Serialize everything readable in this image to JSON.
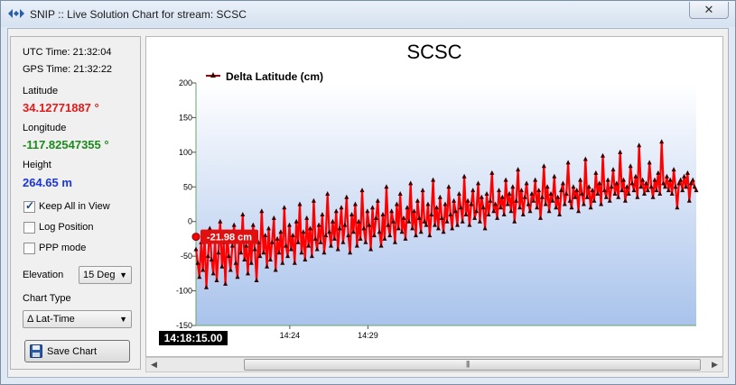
{
  "window": {
    "title": "SNIP :: Live Solution Chart for stream:  SCSC",
    "close_glyph": "✕"
  },
  "panel": {
    "utc": "UTC Time: 21:32:04",
    "gps": "GPS Time: 21:32:22",
    "lat_label": "Latitude",
    "lat_value": "34.12771887 °",
    "lon_label": "Longitude",
    "lon_value": "-117.82547355 °",
    "height_label": "Height",
    "height_value": "264.65 m",
    "keep_all": {
      "label": "Keep All in View",
      "checked": true
    },
    "log_pos": {
      "label": "Log Position",
      "checked": false
    },
    "ppp": {
      "label": "PPP mode",
      "checked": false
    },
    "elevation_label": "Elevation",
    "elevation_value": "15 Deg",
    "chart_type_label": "Chart Type",
    "chart_type_value": "Δ Lat-Time",
    "save_label": "Save Chart"
  },
  "colors": {
    "series": "#ff0000",
    "marker": "#3a0000",
    "accent_lat": "#e11b1b",
    "accent_lon": "#1c8a1c",
    "accent_h": "#1a36d6"
  },
  "chart_data": {
    "type": "line",
    "title": "SCSC",
    "legend": [
      "Delta Latitude (cm)"
    ],
    "legend_position": "top-left",
    "ylim": [
      -150,
      200
    ],
    "yticks": [
      200,
      150,
      100,
      50,
      0,
      -50,
      -100,
      -150
    ],
    "xtick_labels": [
      "14:24",
      "14:29"
    ],
    "time_range_min": [
      14.18,
      14.5
    ],
    "cursor_time": "14:18:15.00",
    "cursor_value_label": "-21.98 cm",
    "cursor_value": -21.98,
    "grid": false,
    "series": [
      {
        "name": "Delta Latitude (cm)",
        "values": [
          -40,
          -60,
          -80,
          -30,
          -70,
          -20,
          -95,
          -50,
          -10,
          -55,
          -75,
          -25,
          -85,
          -45,
          0,
          -65,
          -30,
          -90,
          -15,
          -50,
          -70,
          -35,
          -5,
          -60,
          -80,
          -25,
          -45,
          10,
          -55,
          -35,
          -75,
          -20,
          -60,
          -5,
          -40,
          -85,
          -30,
          -50,
          15,
          -45,
          -20,
          -65,
          -10,
          -55,
          -30,
          5,
          -70,
          -25,
          -45,
          -15,
          -60,
          20,
          -35,
          -50,
          -5,
          -40,
          -20,
          -60,
          0,
          -30,
          25,
          -45,
          -15,
          -55,
          5,
          -35,
          -10,
          -50,
          30,
          -25,
          -40,
          -5,
          -30,
          10,
          -45,
          -20,
          40,
          -15,
          -35,
          0,
          -25,
          15,
          -40,
          -10,
          20,
          -30,
          -5,
          35,
          -20,
          -45,
          10,
          -15,
          25,
          -35,
          0,
          -25,
          45,
          -10,
          -30,
          15,
          -5,
          -40,
          20,
          -20,
          5,
          30,
          -15,
          -35,
          10,
          -25,
          50,
          -5,
          -20,
          15,
          0,
          -30,
          25,
          -10,
          40,
          -15,
          5,
          -25,
          20,
          0,
          55,
          -10,
          15,
          -20,
          30,
          5,
          -15,
          45,
          0,
          -5,
          25,
          -20,
          10,
          60,
          -5,
          20,
          -10,
          35,
          5,
          -15,
          25,
          0,
          50,
          10,
          -10,
          30,
          15,
          -5,
          40,
          20,
          0,
          65,
          10,
          30,
          -5,
          25,
          45,
          5,
          15,
          55,
          0,
          35,
          20,
          -10,
          40,
          10,
          30,
          70,
          15,
          25,
          5,
          45,
          20,
          35,
          10,
          60,
          25,
          40,
          15,
          50,
          0,
          30,
          75,
          20,
          45,
          10,
          35,
          55,
          25,
          15,
          40,
          30,
          60,
          20,
          45,
          5,
          35,
          80,
          25,
          50,
          15,
          40,
          30,
          65,
          20,
          35,
          10,
          45,
          55,
          25,
          40,
          85,
          30,
          20,
          50,
          35,
          45,
          15,
          60,
          40,
          25,
          90,
          35,
          50,
          20,
          45,
          30,
          70,
          40,
          55,
          25,
          95,
          45,
          35,
          60,
          30,
          50,
          75,
          40,
          55,
          35,
          100,
          45,
          60,
          30,
          50,
          40,
          80,
          55,
          45,
          65,
          35,
          110,
          50,
          60,
          40,
          55,
          45,
          85,
          50,
          35,
          60,
          45,
          70,
          40,
          115,
          55,
          50,
          65,
          45,
          60,
          40,
          75,
          50,
          20,
          55,
          60,
          45,
          65,
          50,
          70,
          30,
          55,
          60,
          50,
          45
        ],
        "x_start_min": 14.18,
        "x_end_min": 14.5
      }
    ]
  },
  "scroll": {
    "left_arrow": "◀",
    "right_arrow": "▶",
    "grip": "|||"
  }
}
